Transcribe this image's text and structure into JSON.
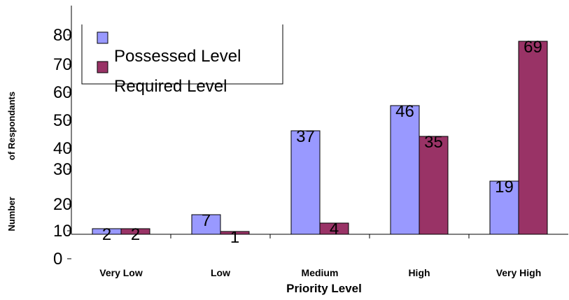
{
  "chart_data": {
    "type": "bar",
    "categories": [
      "Very Low",
      "Low",
      "Medium",
      "High",
      "Very High"
    ],
    "series": [
      {
        "name": "Possessed Level",
        "values": [
          2,
          7,
          37,
          46,
          19
        ],
        "color": "#9999ff"
      },
      {
        "name": "Required Level",
        "values": [
          2,
          1,
          4,
          35,
          69
        ],
        "color": "#993366"
      }
    ],
    "y_tick_labels": [
      "0",
      "10",
      "20",
      "30",
      "40",
      "50",
      "60",
      "70",
      "80"
    ],
    "xlabel": "Priority Level",
    "ylabel_part1": "Number",
    "ylabel_part2": "of Respondants",
    "legend_position": "top-left",
    "grid": false
  }
}
